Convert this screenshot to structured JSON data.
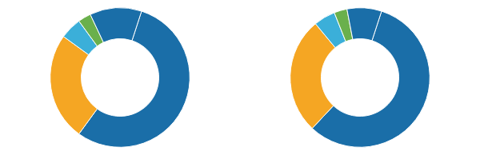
{
  "chart_data": [
    {
      "type": "pie",
      "values": [
        55,
        25,
        5,
        3,
        12
      ],
      "colors": [
        "#1a6ea8",
        "#f5a623",
        "#3bafd9",
        "#6ab04c",
        "#1a6ea8"
      ]
    },
    {
      "type": "pie",
      "values": [
        57,
        27,
        5,
        3,
        8
      ],
      "colors": [
        "#1a6ea8",
        "#f5a623",
        "#3bafd9",
        "#6ab04c",
        "#1a6ea8"
      ]
    }
  ]
}
